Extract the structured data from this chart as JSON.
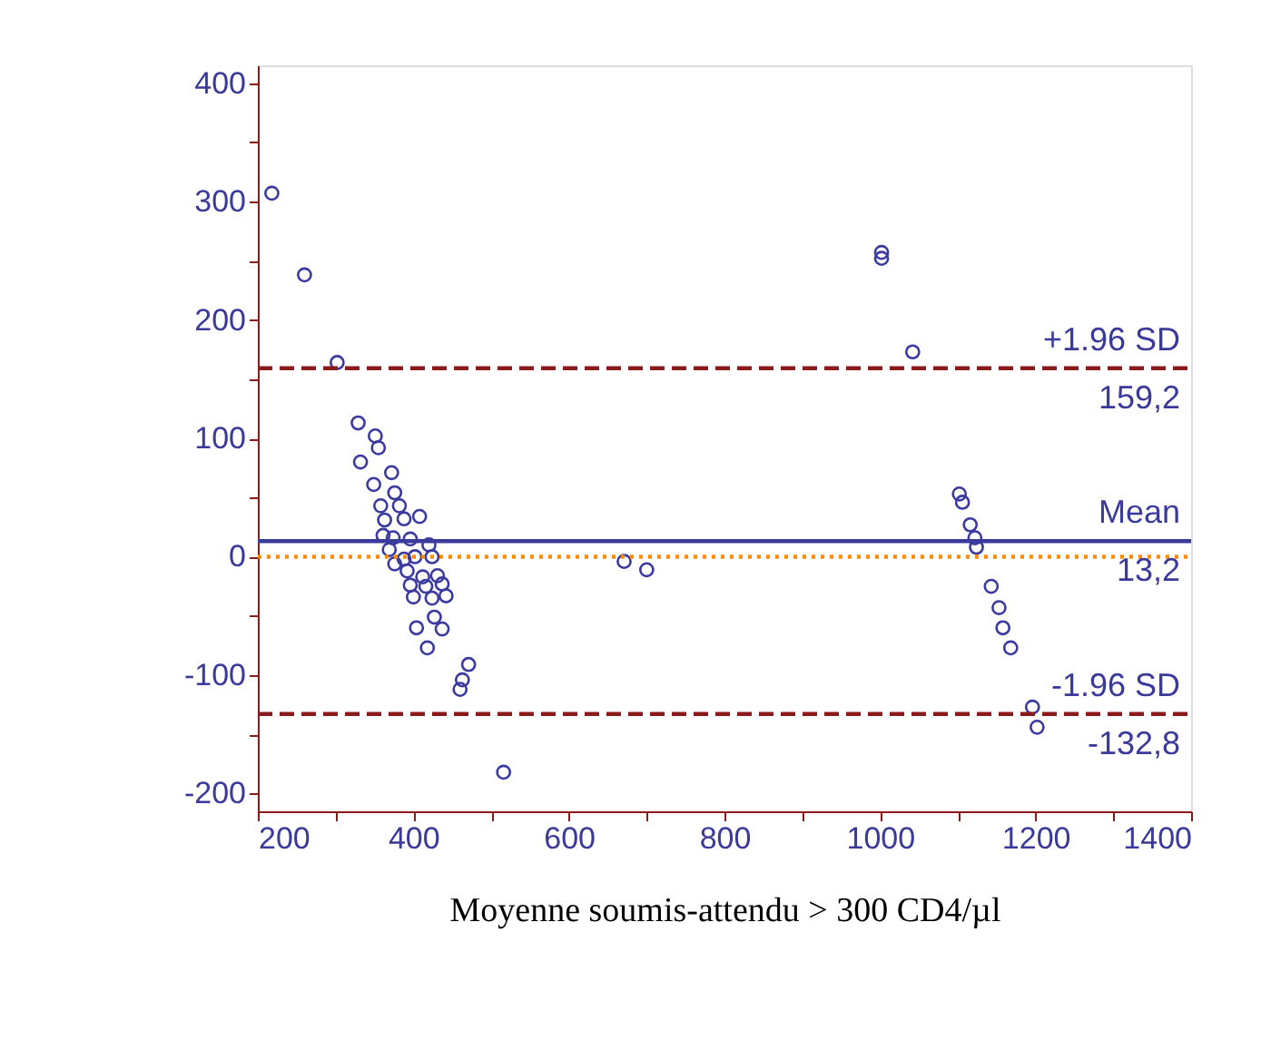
{
  "chart_data": {
    "type": "scatter",
    "xlabel": "Moyenne soumis-attendu > 300 CD4/µl",
    "xlim": [
      200,
      1400
    ],
    "ylim": [
      -215,
      415
    ],
    "xticks": [
      200,
      {
        "value": 300,
        "label": null
      },
      400,
      {
        "value": 500,
        "label": null
      },
      600,
      {
        "value": 700,
        "label": null
      },
      800,
      {
        "value": 900,
        "label": null
      },
      1000,
      {
        "value": 1100,
        "label": null
      },
      1200,
      {
        "value": 1300,
        "label": null
      },
      1400
    ],
    "yticks": [
      {
        "value": -200,
        "label": "-200"
      },
      {
        "value": -150,
        "label": null
      },
      -100,
      {
        "value": -50,
        "label": null
      },
      0,
      {
        "value": 50,
        "label": null
      },
      100,
      {
        "value": 150,
        "label": null
      },
      200,
      {
        "value": 250,
        "label": null
      },
      300,
      {
        "value": 350,
        "label": null
      },
      400
    ],
    "grid": false,
    "marker": "circle",
    "series": [
      {
        "color": "#3a3aa0",
        "x": [
          218,
          260,
          302,
          329,
          332,
          351,
          355,
          349,
          372,
          376,
          358,
          382,
          388,
          408,
          363,
          361,
          374,
          396,
          420,
          369,
          376,
          388,
          402,
          424,
          392,
          412,
          431,
          396,
          416,
          437,
          400,
          424,
          442,
          427,
          437,
          404,
          418,
          471,
          460,
          463,
          516,
          671,
          700,
          1002,
          1002,
          1042,
          1102,
          1106,
          1116,
          1122,
          1124,
          1143,
          1153,
          1158,
          1168,
          1196,
          1202
        ],
        "values": [
          307,
          238,
          164,
          113,
          80,
          102,
          92,
          61,
          71,
          54,
          43,
          43,
          32,
          34,
          31,
          18,
          16,
          15,
          10,
          6,
          -6,
          -2,
          0,
          0,
          -12,
          -17,
          -16,
          -24,
          -25,
          -23,
          -34,
          -35,
          -33,
          -51,
          -61,
          -60,
          -77,
          -91,
          -112,
          -104,
          -182,
          -4,
          -11,
          257,
          252,
          173,
          53,
          46,
          27,
          16,
          8,
          -25,
          -43,
          -60,
          -77,
          -127,
          -144
        ]
      }
    ],
    "ref_lines": [
      {
        "axis": "y",
        "value": 159.2,
        "label": "+1.96 SD",
        "color": "#8b1a1a",
        "line_style": "dashed"
      },
      {
        "axis": "y",
        "value": 13.2,
        "label": "Mean",
        "color": "#3a3a9a",
        "line_style": "solid"
      },
      {
        "axis": "y",
        "value": -132.8,
        "label": "-1.96 SD",
        "color": "#8b1a1a",
        "line_style": "dashed"
      },
      {
        "axis": "y",
        "value": 0,
        "label": null,
        "color": "#ff8c00",
        "line_style": "dotted"
      }
    ],
    "annotations": [
      {
        "text": "159,2",
        "y": 159.2
      },
      {
        "text": "13,2",
        "y": 13.2
      },
      {
        "text": "-132,8",
        "y": -132.8
      }
    ]
  }
}
